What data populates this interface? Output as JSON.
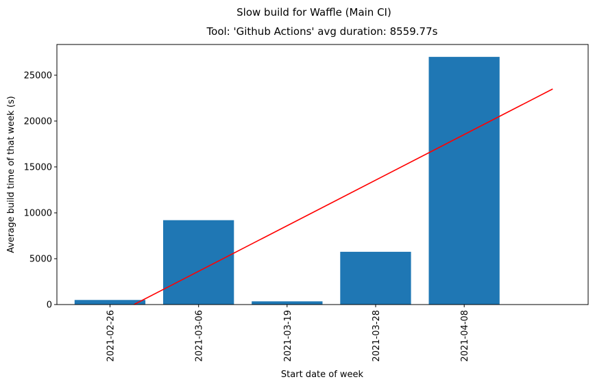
{
  "chart_data": {
    "type": "bar",
    "suptitle": "Slow build for Waffle (Main CI)",
    "title": "Tool: 'Github Actions' avg duration: 8559.77s",
    "xlabel": "Start date of week",
    "ylabel": "Average build time of that week (s)",
    "categories": [
      "2021-02-26",
      "2021-03-06",
      "2021-03-19",
      "2021-03-28",
      "2021-04-08"
    ],
    "values": [
      500,
      9200,
      350,
      5750,
      27000
    ],
    "bar_color": "#1f77b4",
    "ylim": [
      0,
      28350
    ],
    "yticks": [
      0,
      5000,
      10000,
      15000,
      20000,
      25000
    ],
    "xlim": [
      -0.6,
      5.4
    ],
    "trend_line": {
      "color": "#ff0000",
      "x": [
        0.27,
        5.0
      ],
      "y": [
        0,
        23500
      ]
    },
    "grid": false,
    "legend": "none"
  }
}
